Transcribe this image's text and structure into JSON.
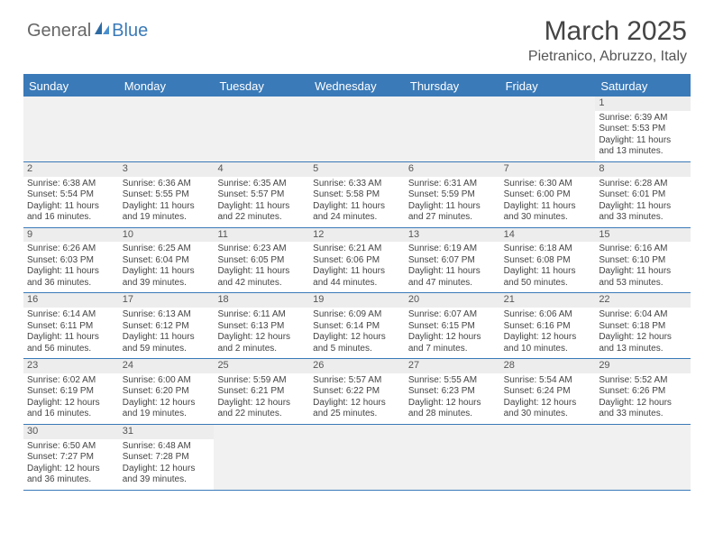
{
  "logo": {
    "text1": "General",
    "text2": "Blue"
  },
  "title": "March 2025",
  "location": "Pietranico, Abruzzo, Italy",
  "colors": {
    "header_bg": "#3a7ab8",
    "header_text": "#ffffff",
    "grid_line": "#3a7ab8",
    "daynum_bg": "#ededed",
    "empty_bg": "#f1f1f1",
    "text": "#444444"
  },
  "day_labels": [
    "Sunday",
    "Monday",
    "Tuesday",
    "Wednesday",
    "Thursday",
    "Friday",
    "Saturday"
  ],
  "weeks": [
    [
      null,
      null,
      null,
      null,
      null,
      null,
      {
        "n": "1",
        "sunrise": "Sunrise: 6:39 AM",
        "sunset": "Sunset: 5:53 PM",
        "daylight": "Daylight: 11 hours and 13 minutes."
      }
    ],
    [
      {
        "n": "2",
        "sunrise": "Sunrise: 6:38 AM",
        "sunset": "Sunset: 5:54 PM",
        "daylight": "Daylight: 11 hours and 16 minutes."
      },
      {
        "n": "3",
        "sunrise": "Sunrise: 6:36 AM",
        "sunset": "Sunset: 5:55 PM",
        "daylight": "Daylight: 11 hours and 19 minutes."
      },
      {
        "n": "4",
        "sunrise": "Sunrise: 6:35 AM",
        "sunset": "Sunset: 5:57 PM",
        "daylight": "Daylight: 11 hours and 22 minutes."
      },
      {
        "n": "5",
        "sunrise": "Sunrise: 6:33 AM",
        "sunset": "Sunset: 5:58 PM",
        "daylight": "Daylight: 11 hours and 24 minutes."
      },
      {
        "n": "6",
        "sunrise": "Sunrise: 6:31 AM",
        "sunset": "Sunset: 5:59 PM",
        "daylight": "Daylight: 11 hours and 27 minutes."
      },
      {
        "n": "7",
        "sunrise": "Sunrise: 6:30 AM",
        "sunset": "Sunset: 6:00 PM",
        "daylight": "Daylight: 11 hours and 30 minutes."
      },
      {
        "n": "8",
        "sunrise": "Sunrise: 6:28 AM",
        "sunset": "Sunset: 6:01 PM",
        "daylight": "Daylight: 11 hours and 33 minutes."
      }
    ],
    [
      {
        "n": "9",
        "sunrise": "Sunrise: 6:26 AM",
        "sunset": "Sunset: 6:03 PM",
        "daylight": "Daylight: 11 hours and 36 minutes."
      },
      {
        "n": "10",
        "sunrise": "Sunrise: 6:25 AM",
        "sunset": "Sunset: 6:04 PM",
        "daylight": "Daylight: 11 hours and 39 minutes."
      },
      {
        "n": "11",
        "sunrise": "Sunrise: 6:23 AM",
        "sunset": "Sunset: 6:05 PM",
        "daylight": "Daylight: 11 hours and 42 minutes."
      },
      {
        "n": "12",
        "sunrise": "Sunrise: 6:21 AM",
        "sunset": "Sunset: 6:06 PM",
        "daylight": "Daylight: 11 hours and 44 minutes."
      },
      {
        "n": "13",
        "sunrise": "Sunrise: 6:19 AM",
        "sunset": "Sunset: 6:07 PM",
        "daylight": "Daylight: 11 hours and 47 minutes."
      },
      {
        "n": "14",
        "sunrise": "Sunrise: 6:18 AM",
        "sunset": "Sunset: 6:08 PM",
        "daylight": "Daylight: 11 hours and 50 minutes."
      },
      {
        "n": "15",
        "sunrise": "Sunrise: 6:16 AM",
        "sunset": "Sunset: 6:10 PM",
        "daylight": "Daylight: 11 hours and 53 minutes."
      }
    ],
    [
      {
        "n": "16",
        "sunrise": "Sunrise: 6:14 AM",
        "sunset": "Sunset: 6:11 PM",
        "daylight": "Daylight: 11 hours and 56 minutes."
      },
      {
        "n": "17",
        "sunrise": "Sunrise: 6:13 AM",
        "sunset": "Sunset: 6:12 PM",
        "daylight": "Daylight: 11 hours and 59 minutes."
      },
      {
        "n": "18",
        "sunrise": "Sunrise: 6:11 AM",
        "sunset": "Sunset: 6:13 PM",
        "daylight": "Daylight: 12 hours and 2 minutes."
      },
      {
        "n": "19",
        "sunrise": "Sunrise: 6:09 AM",
        "sunset": "Sunset: 6:14 PM",
        "daylight": "Daylight: 12 hours and 5 minutes."
      },
      {
        "n": "20",
        "sunrise": "Sunrise: 6:07 AM",
        "sunset": "Sunset: 6:15 PM",
        "daylight": "Daylight: 12 hours and 7 minutes."
      },
      {
        "n": "21",
        "sunrise": "Sunrise: 6:06 AM",
        "sunset": "Sunset: 6:16 PM",
        "daylight": "Daylight: 12 hours and 10 minutes."
      },
      {
        "n": "22",
        "sunrise": "Sunrise: 6:04 AM",
        "sunset": "Sunset: 6:18 PM",
        "daylight": "Daylight: 12 hours and 13 minutes."
      }
    ],
    [
      {
        "n": "23",
        "sunrise": "Sunrise: 6:02 AM",
        "sunset": "Sunset: 6:19 PM",
        "daylight": "Daylight: 12 hours and 16 minutes."
      },
      {
        "n": "24",
        "sunrise": "Sunrise: 6:00 AM",
        "sunset": "Sunset: 6:20 PM",
        "daylight": "Daylight: 12 hours and 19 minutes."
      },
      {
        "n": "25",
        "sunrise": "Sunrise: 5:59 AM",
        "sunset": "Sunset: 6:21 PM",
        "daylight": "Daylight: 12 hours and 22 minutes."
      },
      {
        "n": "26",
        "sunrise": "Sunrise: 5:57 AM",
        "sunset": "Sunset: 6:22 PM",
        "daylight": "Daylight: 12 hours and 25 minutes."
      },
      {
        "n": "27",
        "sunrise": "Sunrise: 5:55 AM",
        "sunset": "Sunset: 6:23 PM",
        "daylight": "Daylight: 12 hours and 28 minutes."
      },
      {
        "n": "28",
        "sunrise": "Sunrise: 5:54 AM",
        "sunset": "Sunset: 6:24 PM",
        "daylight": "Daylight: 12 hours and 30 minutes."
      },
      {
        "n": "29",
        "sunrise": "Sunrise: 5:52 AM",
        "sunset": "Sunset: 6:26 PM",
        "daylight": "Daylight: 12 hours and 33 minutes."
      }
    ],
    [
      {
        "n": "30",
        "sunrise": "Sunrise: 6:50 AM",
        "sunset": "Sunset: 7:27 PM",
        "daylight": "Daylight: 12 hours and 36 minutes."
      },
      {
        "n": "31",
        "sunrise": "Sunrise: 6:48 AM",
        "sunset": "Sunset: 7:28 PM",
        "daylight": "Daylight: 12 hours and 39 minutes."
      },
      null,
      null,
      null,
      null,
      null
    ]
  ]
}
